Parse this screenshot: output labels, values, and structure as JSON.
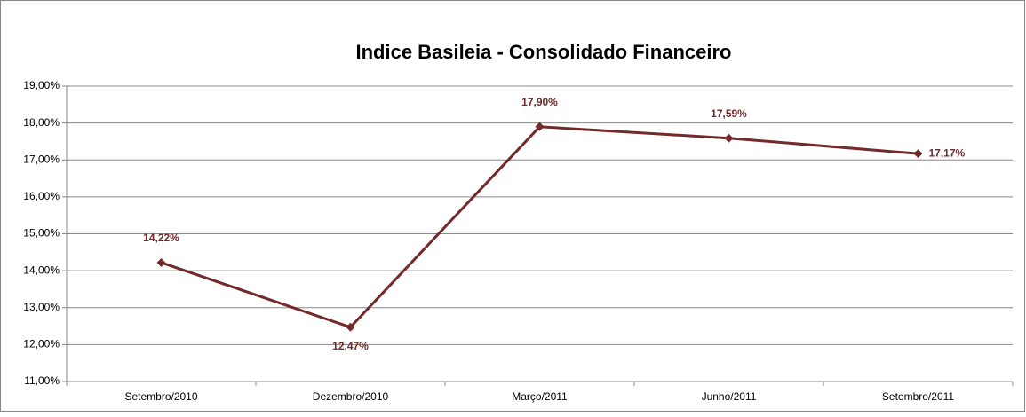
{
  "chart_data": {
    "type": "line",
    "title": "Indice Basileia - Consolidado Financeiro",
    "categories": [
      "Setembro/2010",
      "Dezembro/2010",
      "Março/2011",
      "Junho/2011",
      "Setembro/2011"
    ],
    "series": [
      {
        "color": "#722a2a",
        "values": [
          14.22,
          12.47,
          17.9,
          17.59,
          17.17
        ],
        "value_labels": [
          "14,22%",
          "12,47%",
          "17,90%",
          "17,59%",
          "17,17%"
        ]
      }
    ],
    "ylim": [
      11,
      19
    ],
    "yticks": [
      {
        "value": 11,
        "label": "11,00%"
      },
      {
        "value": 12,
        "label": "12,00%"
      },
      {
        "value": 13,
        "label": "13,00%"
      },
      {
        "value": 14,
        "label": "14,00%"
      },
      {
        "value": 15,
        "label": "15,00%"
      },
      {
        "value": 16,
        "label": "16,00%"
      },
      {
        "value": 17,
        "label": "17,00%"
      },
      {
        "value": 18,
        "label": "18,00%"
      },
      {
        "value": 19,
        "label": "19,00%"
      }
    ],
    "grid": true
  }
}
